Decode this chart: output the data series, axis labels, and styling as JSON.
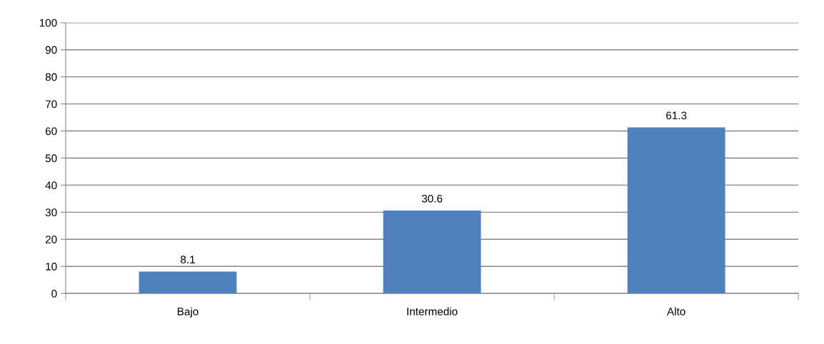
{
  "chart_data": {
    "type": "bar",
    "categories": [
      "Bajo",
      "Intermedio",
      "Alto"
    ],
    "values": [
      8.1,
      30.6,
      61.3
    ],
    "color": "#4f81bd",
    "ylim": [
      0,
      100
    ],
    "yticks": [
      0,
      10,
      20,
      30,
      40,
      50,
      60,
      70,
      80,
      90,
      100
    ],
    "grid": "y",
    "data_labels": true,
    "legend": false
  }
}
